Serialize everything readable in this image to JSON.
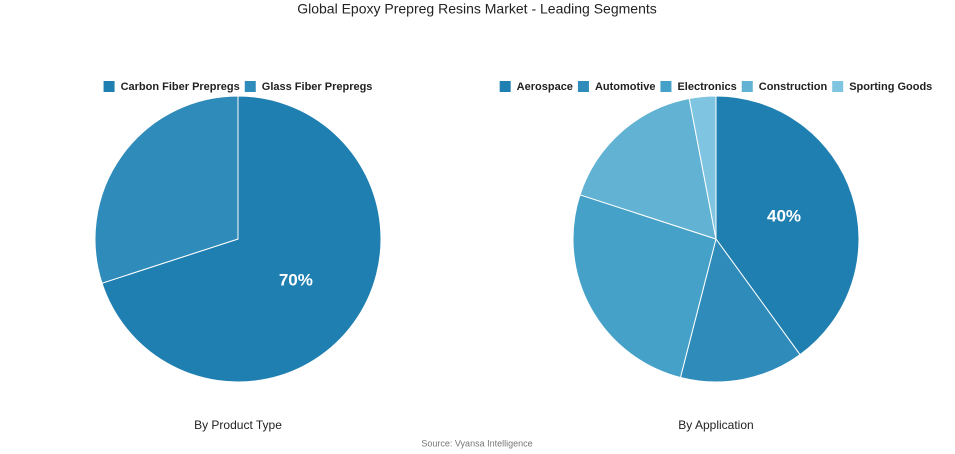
{
  "title": "Global Epoxy Prepreg Resins Market - Leading Segments",
  "chart_data": [
    {
      "type": "pie",
      "title": "By Product Type",
      "categories": [
        "Carbon Fiber Prepregs",
        "Glass Fiber Prepregs"
      ],
      "values": [
        70,
        30
      ],
      "value_labels": [
        "70%",
        null
      ],
      "colors": [
        "#1f7fb0",
        "#2e8bba"
      ]
    },
    {
      "type": "pie",
      "title": "By Application",
      "categories": [
        "Aerospace",
        "Automotive",
        "Electronics",
        "Construction",
        "Sporting Goods"
      ],
      "values": [
        40,
        14,
        26,
        17,
        3
      ],
      "value_labels": [
        "40%",
        null,
        null,
        null,
        null
      ],
      "colors": [
        "#1f7fb0",
        "#2e8bba",
        "#45a1c8",
        "#62b2d3",
        "#7fc4e0"
      ]
    }
  ],
  "source": "Source: Vyansa Intelligence"
}
